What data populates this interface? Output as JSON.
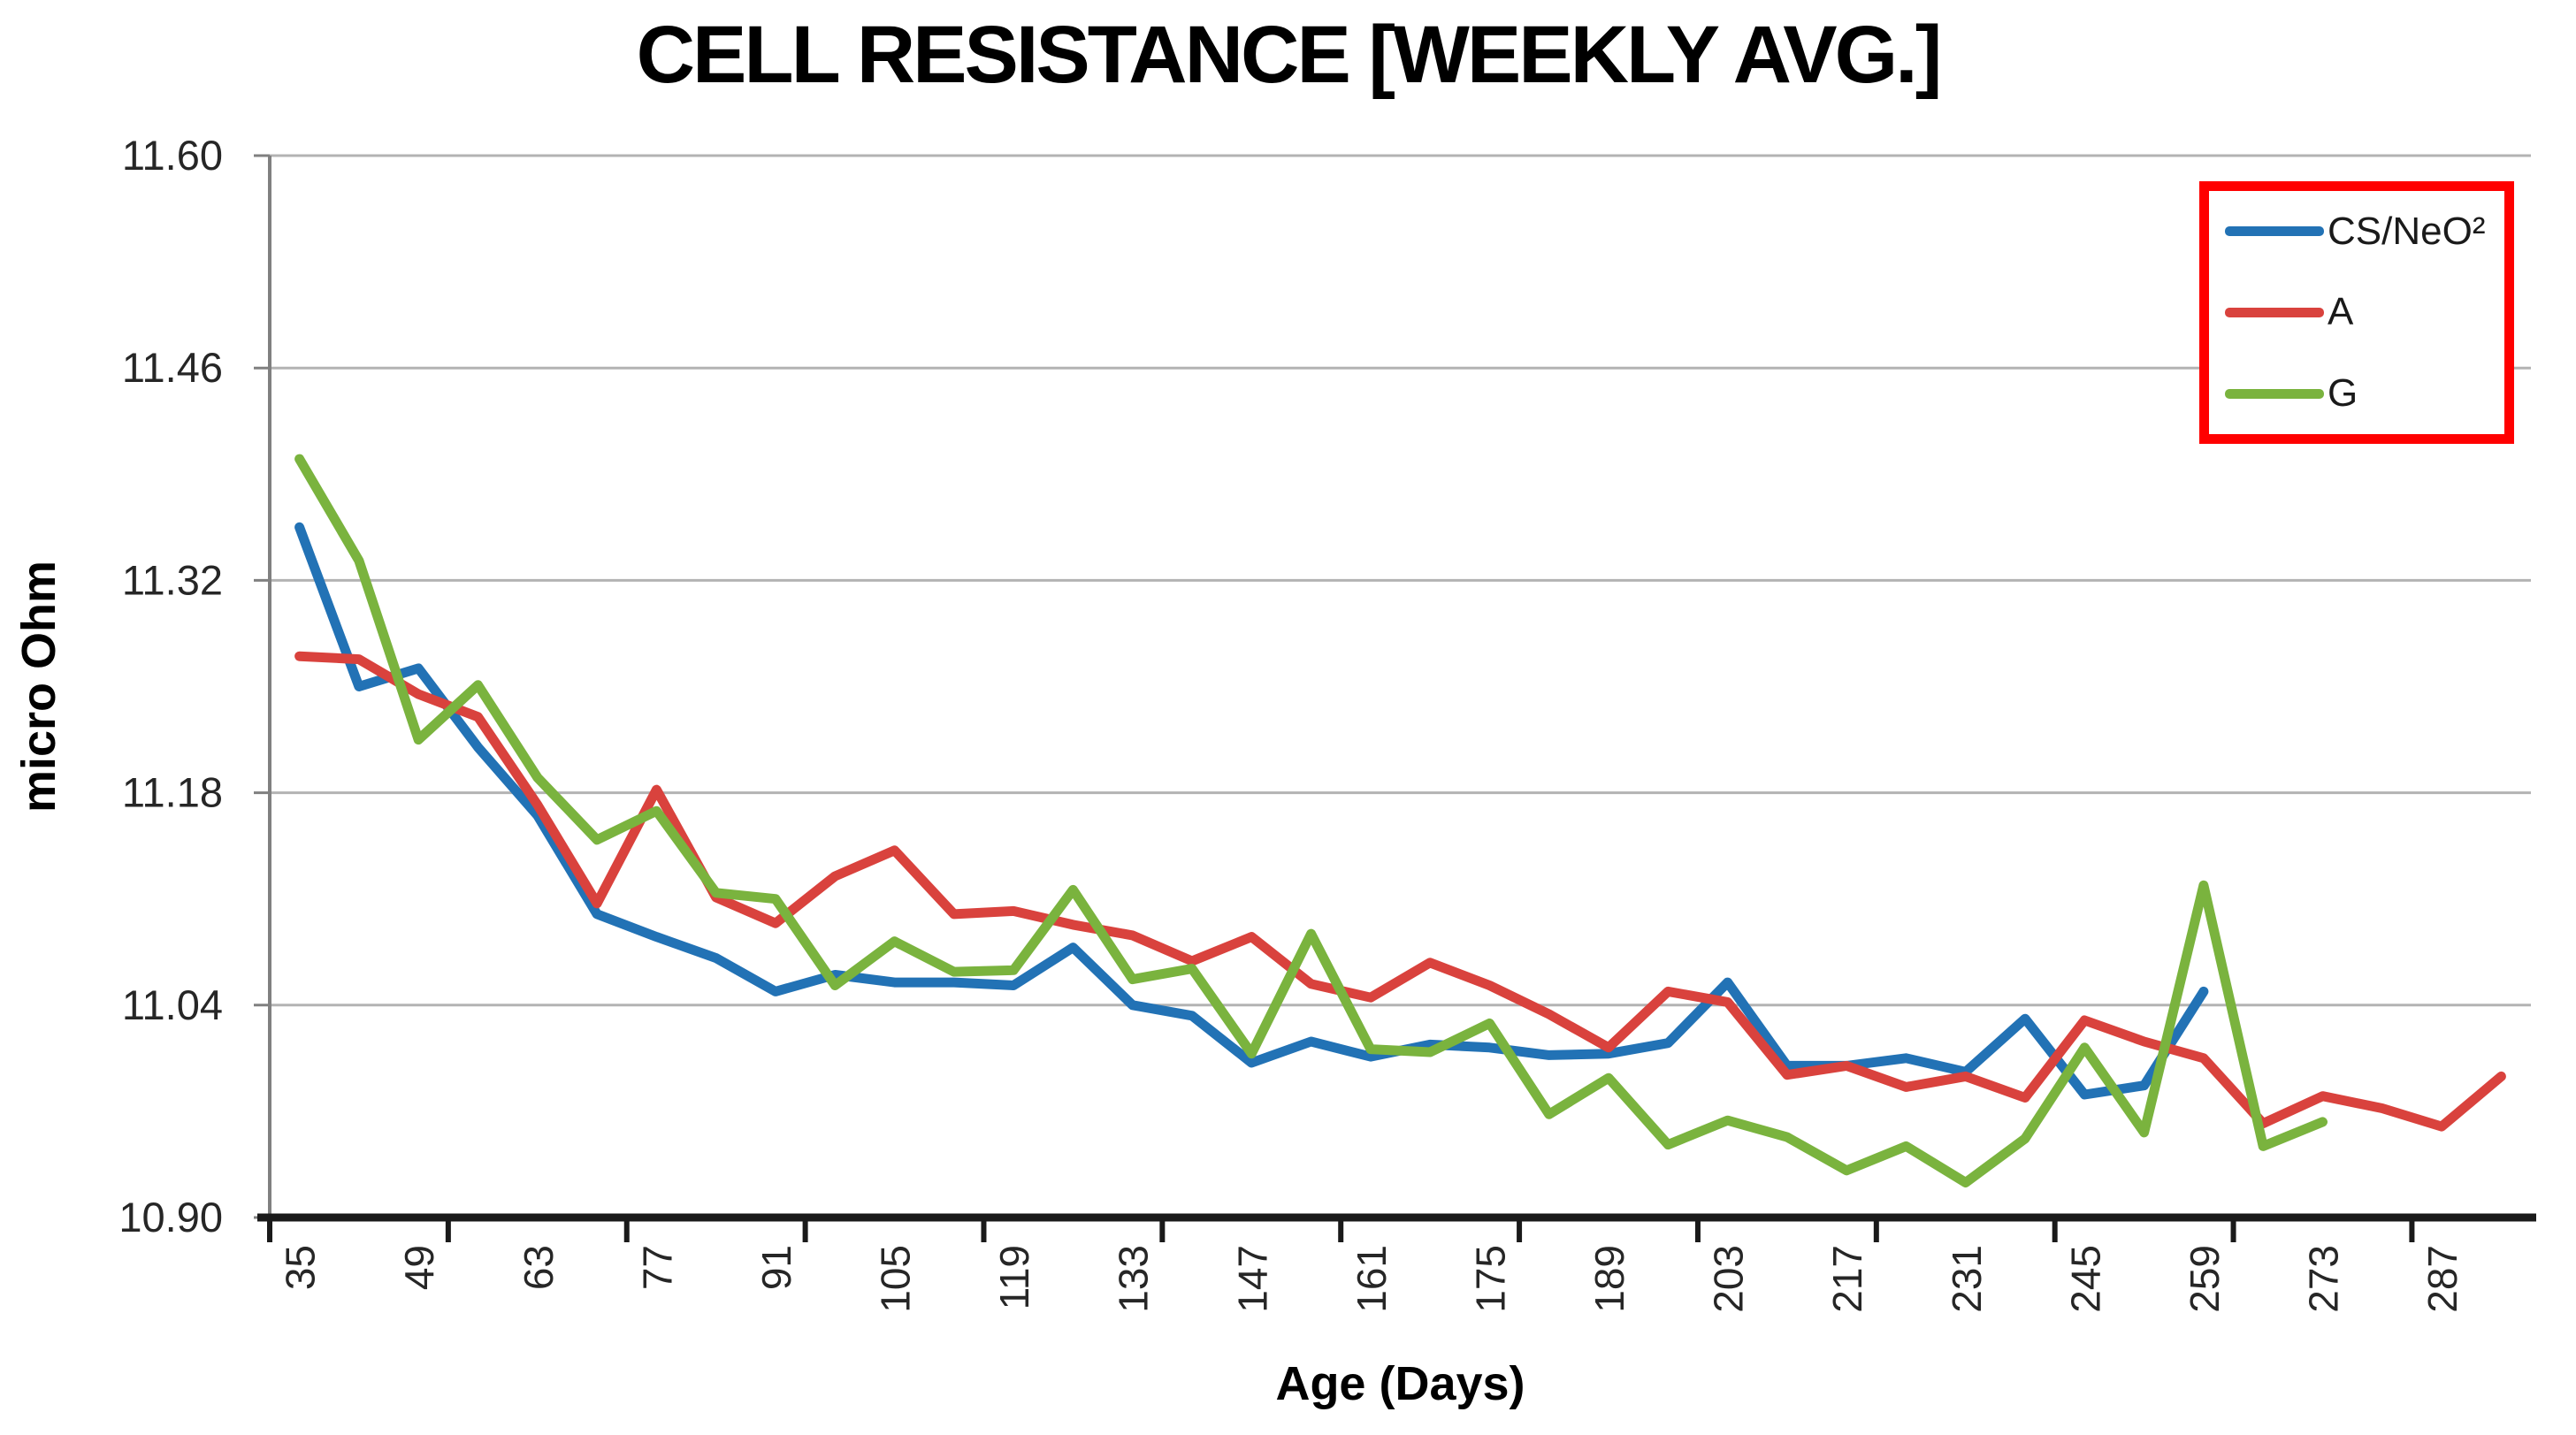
{
  "title": "CELL RESISTANCE [WEEKLY AVG.]",
  "chart_data": {
    "type": "line",
    "title": "CELL RESISTANCE [WEEKLY AVG.]",
    "xlabel": "Age (Days)",
    "ylabel": "micro Ohm",
    "ylim": [
      10.9,
      11.6
    ],
    "y_tick_labels": [
      "11.60",
      "11.46",
      "11.32",
      "11.18",
      "11.04",
      "10.90"
    ],
    "x_tick_labels": [
      35,
      49,
      63,
      77,
      91,
      105,
      119,
      133,
      147,
      161,
      175,
      189,
      203,
      217,
      231,
      245,
      259,
      273,
      287
    ],
    "x_start_day": 35,
    "x_step_days": 7,
    "x_slot_count": 38,
    "grid": true,
    "legend_position": "top-right",
    "legend_border_color": "#ff0000",
    "axis_color": "#808080",
    "x_axis_color": "#1a1a1a",
    "grid_color": "#b3b3b3",
    "series": [
      {
        "name": "CS/NeO²",
        "color": "#2272b5",
        "start_day": 35,
        "values": [
          11.355,
          11.25,
          11.262,
          11.21,
          11.165,
          11.1,
          11.085,
          11.071,
          11.049,
          11.06,
          11.055,
          11.055,
          11.053,
          11.078,
          11.04,
          11.033,
          11.002,
          11.016,
          11.006,
          11.014,
          11.012,
          11.007,
          11.008,
          11.015,
          11.055,
          11.0,
          11.0,
          11.005,
          10.996,
          11.031,
          10.981,
          10.987,
          11.049
        ]
      },
      {
        "name": "A",
        "color": "#d9423d",
        "start_day": 35,
        "values": [
          11.27,
          11.268,
          11.245,
          11.23,
          11.172,
          11.107,
          11.182,
          11.111,
          11.094,
          11.125,
          11.142,
          11.1,
          11.102,
          11.093,
          11.086,
          11.069,
          11.085,
          11.054,
          11.045,
          11.068,
          11.053,
          11.034,
          11.012,
          11.049,
          11.042,
          10.994,
          11.0,
          10.986,
          10.993,
          10.979,
          11.03,
          11.016,
          11.005,
          10.962,
          10.98,
          10.972,
          10.96,
          10.993
        ]
      },
      {
        "name": "G",
        "color": "#7ab33e",
        "start_day": 35,
        "values": [
          11.4,
          11.333,
          11.215,
          11.251,
          11.19,
          11.149,
          11.168,
          11.114,
          11.11,
          11.053,
          11.082,
          11.062,
          11.063,
          11.116,
          11.057,
          11.064,
          11.008,
          11.087,
          11.011,
          11.009,
          11.028,
          10.968,
          10.992,
          10.948,
          10.964,
          10.953,
          10.931,
          10.947,
          10.923,
          10.952,
          11.012,
          10.956,
          11.119,
          10.947,
          10.963
        ]
      }
    ]
  }
}
